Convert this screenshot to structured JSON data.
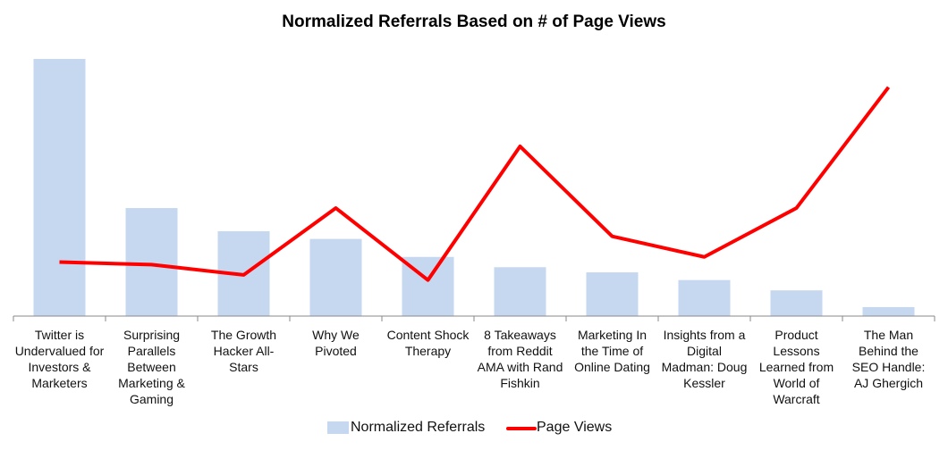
{
  "chart_data": {
    "type": "bar_line",
    "title": "Normalized Referrals Based on # of Page Views",
    "categories": [
      "Twitter is Undervalued for Investors & Marketers",
      "Surprising Parallels Between Marketing & Gaming",
      "The Growth Hacker All-Stars",
      "Why We Pivoted",
      "Content Shock Therapy",
      "8 Takeaways from Reddit AMA with Rand Fishkin",
      "Marketing In the Time of Online Dating",
      "Insights from a Digital Madman: Doug Kessler",
      "Product Lessons Learned from World of Warcraft",
      "The Man Behind the SEO Handle: AJ Ghergich"
    ],
    "series": [
      {
        "name": "Normalized Referrals",
        "type": "bar",
        "color": "#c6d7f0",
        "values": [
          100,
          42,
          33,
          30,
          23,
          19,
          17,
          14,
          10,
          3.5
        ]
      },
      {
        "name": "Page Views",
        "type": "line",
        "color": "#ff0000",
        "values": [
          21,
          20,
          16,
          42,
          14,
          66,
          31,
          23,
          42,
          89
        ]
      }
    ]
  }
}
